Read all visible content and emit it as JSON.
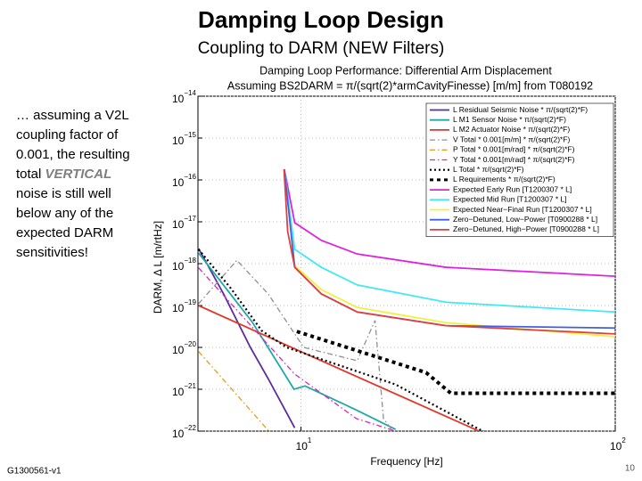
{
  "slide": {
    "title": "Damping Loop Design",
    "subtitle": "Coupling to DARM (NEW Filters)",
    "body": [
      "… assuming a V2L",
      "coupling factor of",
      "0.001, the resulting",
      [
        "total ",
        "VERTICAL"
      ],
      "noise is still well",
      "below any of the",
      "expected DARM",
      "sensitivities!"
    ],
    "footer": "G1300561-v1",
    "page_number": "10"
  },
  "chart_data": {
    "type": "line",
    "title": "Damping Loop Performance: Differential Arm Displacement",
    "subtitle": "Assuming BS2DARM = π/(sqrt(2)*armCavityFinesse) [m/m] from T080192",
    "xlabel": "Frequency [Hz]",
    "ylabel": "DARM, Δ L [m/rtHz]",
    "xlog": true,
    "ylog": true,
    "grid": true,
    "legend": "upper right",
    "xlim": [
      4.7,
      100
    ],
    "ylim": [
      1e-22,
      1e-14
    ],
    "xticks": [
      {
        "value": 10,
        "label": "10",
        "sup": "1"
      },
      {
        "value": 100,
        "label": "10",
        "sup": "2"
      }
    ],
    "yticks": [
      {
        "value": 1e-14,
        "label": "10",
        "sup": "−14"
      },
      {
        "value": 1e-15,
        "label": "10",
        "sup": "−15"
      },
      {
        "value": 1e-16,
        "label": "10",
        "sup": "−16"
      },
      {
        "value": 1e-17,
        "label": "10",
        "sup": "−17"
      },
      {
        "value": 1e-18,
        "label": "10",
        "sup": "−18"
      },
      {
        "value": 1e-19,
        "label": "10",
        "sup": "−19"
      },
      {
        "value": 1e-20,
        "label": "10",
        "sup": "−20"
      },
      {
        "value": 1e-21,
        "label": "10",
        "sup": "−21"
      },
      {
        "value": 1e-22,
        "label": "10",
        "sup": "−22"
      }
    ],
    "series": [
      {
        "name": "L Residual Seismic Noise * π/(sqrt(2)*F)",
        "color": "#5a2ca0",
        "style": "solid",
        "x": [
          4.72,
          5.67,
          6.9,
          7.86,
          9.55
        ],
        "values": [
          2.3e-18,
          1.9e-19,
          1e-20,
          1.8e-21,
          1.2e-22
        ]
      },
      {
        "name": "L M1 Sensor Noise * π/(sqrt(2)*F)",
        "color": "#20a8a8",
        "style": "solid",
        "x": [
          4.72,
          7,
          9.5,
          10.3,
          15,
          20
        ],
        "values": [
          1.8e-18,
          4e-20,
          1e-21,
          1.2e-21,
          3.2e-22,
          1.1e-22
        ]
      },
      {
        "name": "L M2 Actuator Noise * π/(sqrt(2)*F)",
        "color": "#e03828",
        "style": "solid",
        "x": [
          4.72,
          10,
          40
        ],
        "values": [
          1e-19,
          7.9e-21,
          7.6e-23
        ]
      },
      {
        "name": "V Total * 0.001[m/m] * π/(sqrt(2)*F)",
        "color": "#909090",
        "style": "dashdot",
        "x": [
          4.72,
          6.25,
          7.86,
          10.2,
          15.1,
          17.2,
          18.3,
          19.6
        ],
        "values": [
          1.1e-19,
          1.2e-18,
          1.9e-19,
          1e-20,
          4.8e-21,
          4.4e-20,
          2e-22,
          1e-22
        ]
      },
      {
        "name": "P Total * 0.001[m/rad] * π/(sqrt(2)*F)",
        "color": "#e0a020",
        "style": "dashdot",
        "x": [
          4.72,
          7.9
        ],
        "values": [
          8e-21,
          1e-22
        ]
      },
      {
        "name": "Y Total * 0.001[m/rad] * π/(sqrt(2)*F)",
        "color": "#e020c0",
        "style": "dashdot",
        "x": [
          4.72,
          9.55,
          15,
          20
        ],
        "values": [
          8e-19,
          2.3e-21,
          2e-22,
          1e-22
        ]
      },
      {
        "name": "L Total * π/(sqrt(2)*F)",
        "color": "#000000",
        "style": "dotted",
        "x": [
          4.72,
          6,
          7.5,
          9,
          20,
          40
        ],
        "values": [
          2.2e-18,
          2.5e-19,
          2.5e-20,
          1e-20,
          1.3e-21,
          8e-23
        ]
      },
      {
        "name": "L Requirements * π/(sqrt(2)*F)",
        "color": "#000000",
        "style": "thick-dotted",
        "x": [
          9.7,
          25,
          30,
          100
        ],
        "values": [
          2.4e-20,
          2.5e-21,
          8e-22,
          8e-22
        ]
      },
      {
        "name": "Expected Early Run [T1200307 * L]",
        "color": "#e020e0",
        "style": "solid",
        "x": [
          8.85,
          9.55,
          11.6,
          15.1,
          28.9,
          100
        ],
        "values": [
          1.8e-16,
          9.5e-18,
          3.6e-18,
          1.7e-18,
          8.2e-19,
          5e-19
        ]
      },
      {
        "name": "Expected Mid Run [T1200307 * L]",
        "color": "#40e8f8",
        "style": "solid",
        "x": [
          8.85,
          9.55,
          11.6,
          15.1,
          28.9,
          100
        ],
        "values": [
          1.8e-16,
          2.2e-18,
          8.2e-19,
          3.1e-19,
          1.2e-19,
          7e-20
        ]
      },
      {
        "name": "Expected Near−Final Run [T1200307 * L]",
        "color": "#f0f040",
        "style": "solid",
        "x": [
          8.85,
          9.55,
          11.6,
          15.1,
          28.9,
          100
        ],
        "values": [
          1.8e-16,
          9e-19,
          2.4e-19,
          9e-20,
          3.9e-20,
          1.8e-20
        ]
      },
      {
        "name": "Zero−Detuned, Low−Power [T0900288 * L]",
        "color": "#4060e0",
        "style": "solid",
        "x": [
          8.85,
          9.55,
          11.6,
          15.1,
          28.9,
          100
        ],
        "values": [
          1.8e-16,
          8.2e-19,
          1.9e-19,
          7e-20,
          3.3e-20,
          2.9e-20
        ]
      },
      {
        "name": "Zero−Detuned, High−Power [T0900288 * L]",
        "color": "#e04040",
        "style": "solid",
        "x": [
          8.83,
          9.07,
          9.55,
          11.6,
          15.1,
          28.9,
          100
        ],
        "values": [
          1.8e-16,
          5.9e-18,
          8.2e-19,
          1.9e-19,
          7e-20,
          3.3e-20,
          2.1e-20
        ]
      }
    ]
  }
}
